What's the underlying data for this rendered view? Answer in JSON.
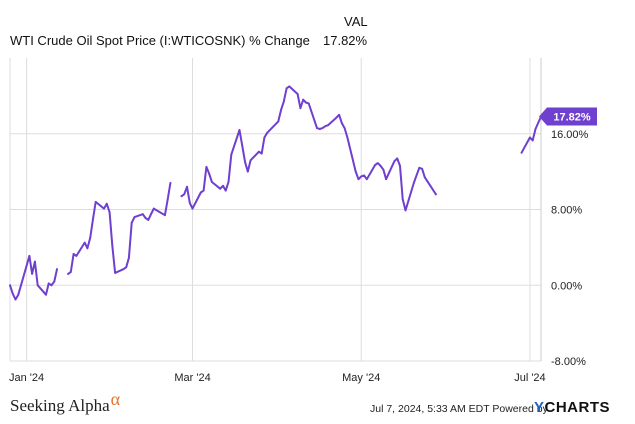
{
  "header": {
    "column_label": "VAL",
    "series_label": "WTI Crude Oil Spot Price (I:WTICOSNK) % Change",
    "series_value": "17.82%"
  },
  "brand": {
    "name": "Seeking Alpha",
    "symbol": "α"
  },
  "footer": {
    "timestamp": "Jul 7, 2024, 5:33 AM EDT Powered by",
    "provider": "YCHARTS",
    "provider_mark": "Y",
    "provider_rest": "CHARTS"
  },
  "colors": {
    "line": "#6f3fcf",
    "grid": "#dddddd",
    "text": "#222222"
  },
  "chart_data": {
    "type": "line",
    "title": "WTI Crude Oil Spot Price (I:WTICOSNK) % Change",
    "ylabel": "",
    "xlabel": "",
    "ylim": [
      -8,
      24
    ],
    "xlim": [
      "2023-12-26",
      "2024-07-05"
    ],
    "y_ticks": [
      -8,
      0,
      8,
      16
    ],
    "y_tick_labels": [
      "-8.00%",
      "0.00%",
      "8.00%",
      "16.00%"
    ],
    "x_ticks": [
      "2024-01-01",
      "2024-03-01",
      "2024-05-01",
      "2024-07-01"
    ],
    "x_tick_labels": [
      "Jan '24",
      "Mar '24",
      "May '24",
      "Jul '24"
    ],
    "grid": true,
    "last_value_label": "17.82%",
    "series": [
      {
        "name": "WTI Crude Oil Spot Price (I:WTICOSNK) % Change",
        "segments": [
          [
            [
              "2023-12-26",
              0.0
            ],
            [
              "2023-12-27",
              -0.9
            ],
            [
              "2023-12-28",
              -1.5
            ],
            [
              "2023-12-29",
              -1.0
            ],
            [
              "2024-01-02",
              3.1
            ],
            [
              "2024-01-03",
              1.2
            ],
            [
              "2024-01-04",
              2.5
            ],
            [
              "2024-01-05",
              0.0
            ],
            [
              "2024-01-08",
              -1.0
            ],
            [
              "2024-01-09",
              0.2
            ],
            [
              "2024-01-10",
              0.0
            ],
            [
              "2024-01-11",
              0.4
            ],
            [
              "2024-01-12",
              1.7
            ]
          ],
          [
            [
              "2024-01-16",
              1.2
            ],
            [
              "2024-01-17",
              1.4
            ],
            [
              "2024-01-18",
              3.3
            ],
            [
              "2024-01-19",
              3.1
            ],
            [
              "2024-01-22",
              4.5
            ],
            [
              "2024-01-23",
              3.9
            ],
            [
              "2024-01-24",
              5.0
            ],
            [
              "2024-01-25",
              7.0
            ],
            [
              "2024-01-26",
              8.8
            ],
            [
              "2024-01-29",
              8.1
            ],
            [
              "2024-01-30",
              8.6
            ],
            [
              "2024-01-31",
              7.7
            ],
            [
              "2024-02-01",
              4.2
            ],
            [
              "2024-02-02",
              1.3
            ],
            [
              "2024-02-05",
              1.7
            ],
            [
              "2024-02-06",
              1.9
            ],
            [
              "2024-02-07",
              2.9
            ],
            [
              "2024-02-08",
              6.6
            ],
            [
              "2024-02-09",
              7.2
            ],
            [
              "2024-02-12",
              7.5
            ],
            [
              "2024-02-13",
              7.1
            ],
            [
              "2024-02-14",
              6.9
            ],
            [
              "2024-02-15",
              7.5
            ],
            [
              "2024-02-16",
              8.1
            ],
            [
              "2024-02-20",
              7.4
            ],
            [
              "2024-02-21",
              9.0
            ],
            [
              "2024-02-22",
              10.8
            ]
          ],
          [
            [
              "2024-02-26",
              9.4
            ],
            [
              "2024-02-27",
              9.6
            ],
            [
              "2024-02-28",
              10.4
            ],
            [
              "2024-02-29",
              8.7
            ],
            [
              "2024-03-01",
              8.1
            ],
            [
              "2024-03-04",
              9.8
            ],
            [
              "2024-03-05",
              10.0
            ],
            [
              "2024-03-06",
              12.5
            ],
            [
              "2024-03-07",
              11.8
            ],
            [
              "2024-03-08",
              10.9
            ],
            [
              "2024-03-11",
              10.2
            ],
            [
              "2024-03-12",
              10.5
            ],
            [
              "2024-03-13",
              10.0
            ],
            [
              "2024-03-14",
              10.9
            ],
            [
              "2024-03-15",
              13.8
            ],
            [
              "2024-03-18",
              16.4
            ],
            [
              "2024-03-19",
              14.7
            ],
            [
              "2024-03-20",
              13.0
            ],
            [
              "2024-03-21",
              12.0
            ],
            [
              "2024-03-22",
              13.2
            ],
            [
              "2024-03-25",
              14.1
            ],
            [
              "2024-03-26",
              13.9
            ],
            [
              "2024-03-27",
              15.6
            ],
            [
              "2024-03-28",
              16.1
            ],
            [
              "2024-04-01",
              17.3
            ],
            [
              "2024-04-02",
              18.5
            ],
            [
              "2024-04-03",
              19.4
            ],
            [
              "2024-04-04",
              20.8
            ],
            [
              "2024-04-05",
              21.0
            ],
            [
              "2024-04-08",
              20.2
            ],
            [
              "2024-04-09",
              18.7
            ],
            [
              "2024-04-10",
              19.6
            ],
            [
              "2024-04-11",
              19.3
            ],
            [
              "2024-04-12",
              19.2
            ],
            [
              "2024-04-15",
              16.6
            ],
            [
              "2024-04-16",
              16.5
            ],
            [
              "2024-04-17",
              16.6
            ],
            [
              "2024-04-18",
              16.8
            ],
            [
              "2024-04-19",
              16.9
            ],
            [
              "2024-04-22",
              17.7
            ],
            [
              "2024-04-23",
              18.0
            ],
            [
              "2024-04-24",
              17.1
            ],
            [
              "2024-04-25",
              16.6
            ],
            [
              "2024-04-26",
              15.6
            ],
            [
              "2024-04-29",
              12.0
            ],
            [
              "2024-04-30",
              11.2
            ],
            [
              "2024-05-01",
              11.5
            ],
            [
              "2024-05-02",
              11.6
            ],
            [
              "2024-05-03",
              11.2
            ],
            [
              "2024-05-06",
              12.7
            ],
            [
              "2024-05-07",
              12.9
            ],
            [
              "2024-05-08",
              12.6
            ],
            [
              "2024-05-09",
              12.2
            ],
            [
              "2024-05-10",
              11.2
            ],
            [
              "2024-05-13",
              13.1
            ],
            [
              "2024-05-14",
              13.4
            ],
            [
              "2024-05-15",
              12.6
            ],
            [
              "2024-05-16",
              9.1
            ],
            [
              "2024-05-17",
              7.9
            ],
            [
              "2024-05-20",
              10.8
            ],
            [
              "2024-05-21",
              11.6
            ],
            [
              "2024-05-22",
              12.4
            ],
            [
              "2024-05-23",
              12.3
            ],
            [
              "2024-05-24",
              11.4
            ],
            [
              "2024-05-28",
              9.6
            ]
          ],
          [
            [
              "2024-06-28",
              14.0
            ],
            [
              "2024-07-01",
              15.6
            ],
            [
              "2024-07-02",
              15.3
            ],
            [
              "2024-07-03",
              16.5
            ],
            [
              "2024-07-05",
              17.82
            ]
          ]
        ]
      }
    ]
  }
}
